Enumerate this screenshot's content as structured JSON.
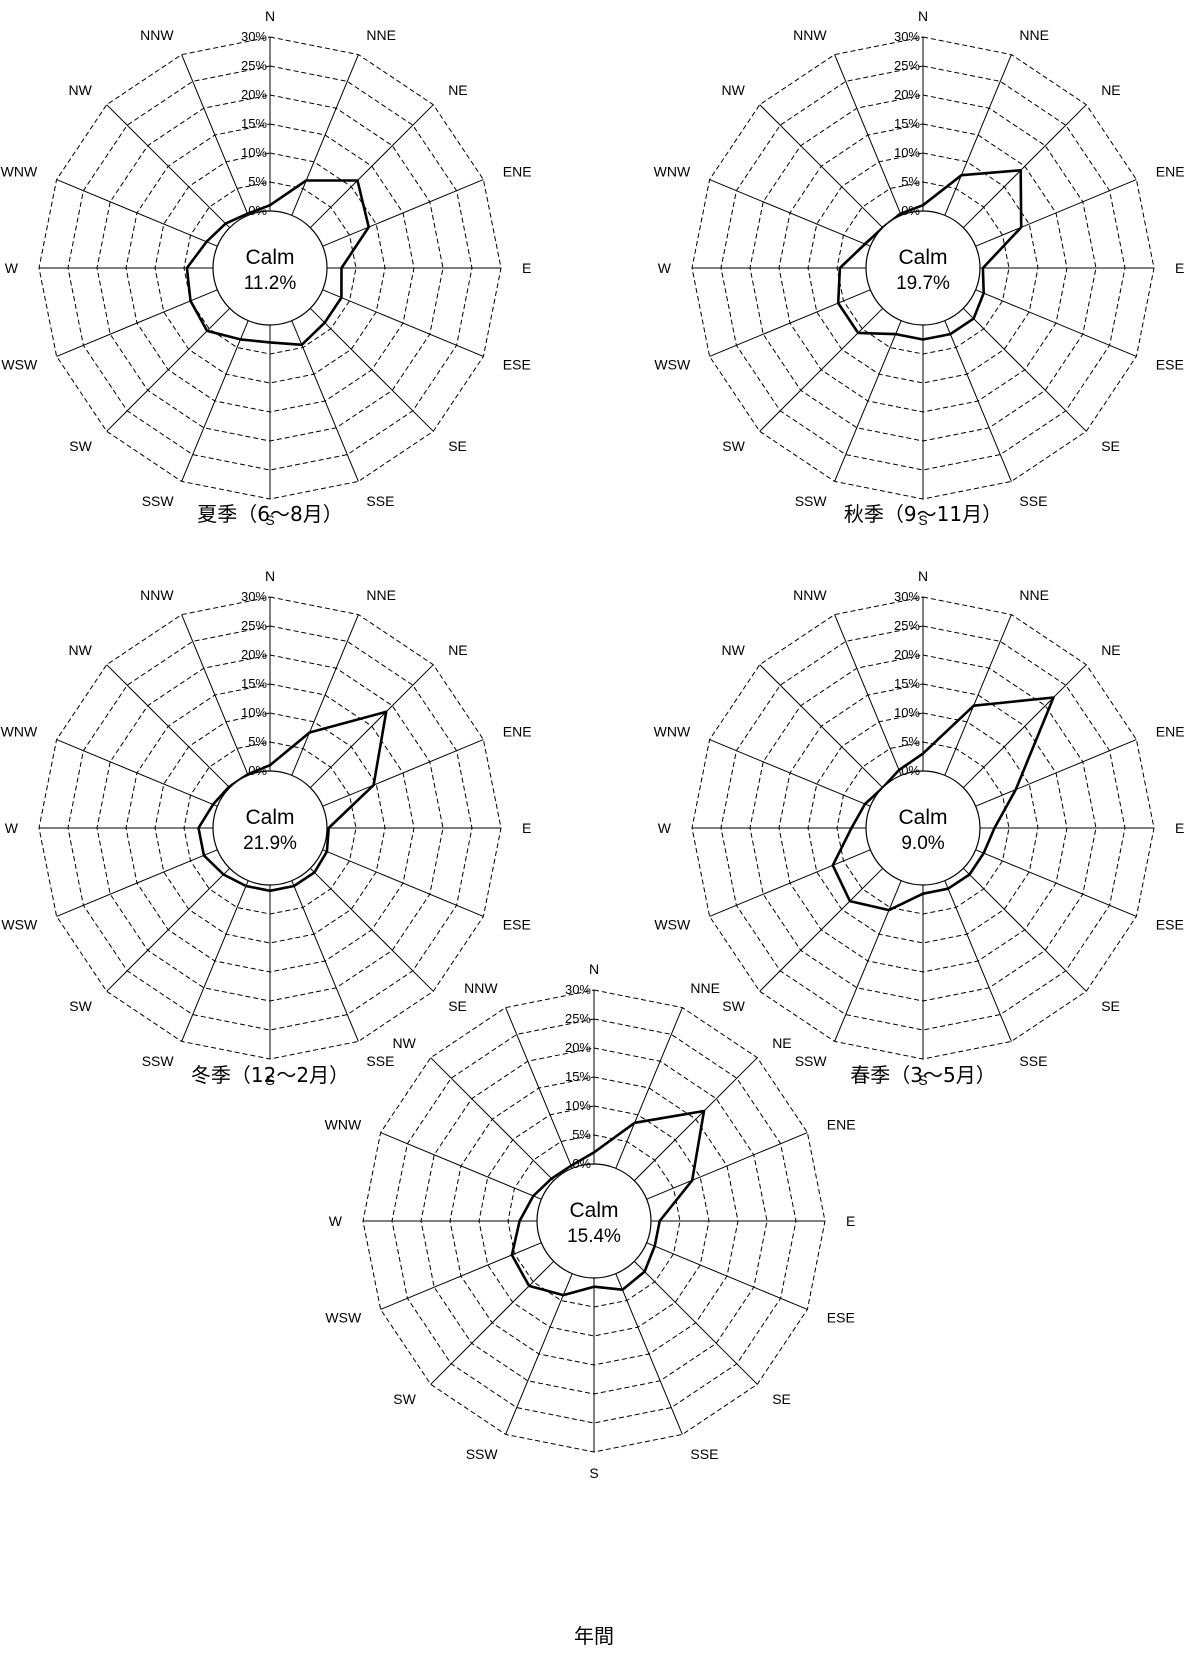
{
  "chart_data": [
    {
      "type": "radar",
      "caption": "夏季（6～8月）",
      "directions": [
        "N",
        "NNE",
        "NE",
        "ENE",
        "E",
        "ESE",
        "SE",
        "SSE",
        "S",
        "SSW",
        "SW",
        "WSW",
        "W",
        "WNW",
        "NW",
        "NNW"
      ],
      "rings": [
        "0%",
        "5%",
        "10%",
        "15%",
        "20%",
        "25%",
        "30%"
      ],
      "rmax": 30,
      "calm_label": "Calm",
      "calm_value": "11.2%",
      "values": [
        1.0,
        6.5,
        11.5,
        8.6,
        2.5,
        3.5,
        3.5,
        4.5,
        3.0,
        3.5,
        5.5,
        5.0,
        4.5,
        2.0,
        1.0,
        0.3
      ]
    },
    {
      "type": "radar",
      "caption": "秋季（9～11月）",
      "directions": [
        "N",
        "NNE",
        "NE",
        "ENE",
        "E",
        "ESE",
        "SE",
        "SSE",
        "S",
        "SSW",
        "SW",
        "WSW",
        "W",
        "WNW",
        "NW",
        "NNW"
      ],
      "rings": [
        "0%",
        "5%",
        "10%",
        "15%",
        "20%",
        "25%",
        "30%"
      ],
      "rmax": 30,
      "calm_label": "Calm",
      "calm_value": "19.7%",
      "values": [
        1.0,
        7.5,
        14.0,
        8.5,
        0.5,
        1.5,
        2.5,
        2.5,
        2.5,
        2.5,
        6.0,
        6.0,
        4.5,
        1.0,
        0.0,
        0.3
      ]
    },
    {
      "type": "radar",
      "caption": "冬季（12～2月）",
      "directions": [
        "N",
        "NNE",
        "NE",
        "ENE",
        "E",
        "ESE",
        "SE",
        "SSE",
        "S",
        "SSW",
        "SW",
        "WSW",
        "W",
        "WNW",
        "NW",
        "NNW"
      ],
      "rings": [
        "0%",
        "5%",
        "10%",
        "15%",
        "20%",
        "25%",
        "30%"
      ],
      "rmax": 30,
      "calm_label": "Calm",
      "calm_value": "21.9%",
      "values": [
        1.0,
        8.0,
        18.5,
        9.5,
        0.3,
        0.8,
        1.0,
        1.0,
        1.0,
        1.0,
        1.5,
        2.5,
        2.5,
        0.8,
        0.2,
        0.2
      ]
    },
    {
      "type": "radar",
      "caption": "春季（3～5月）",
      "directions": [
        "N",
        "NNE",
        "NE",
        "ENE",
        "E",
        "ESE",
        "SE",
        "SSE",
        "S",
        "SSW",
        "SW",
        "WSW",
        "W",
        "WNW",
        "NW",
        "NNW"
      ],
      "rings": [
        "0%",
        "5%",
        "10%",
        "15%",
        "20%",
        "25%",
        "30%"
      ],
      "rmax": 30,
      "calm_label": "Calm",
      "calm_value": "9.0%",
      "values": [
        3.0,
        13.0,
        22.0,
        7.5,
        2.5,
        1.5,
        1.5,
        1.5,
        1.5,
        5.5,
        8.0,
        7.0,
        2.5,
        1.0,
        0.0,
        1.0
      ]
    },
    {
      "type": "radar",
      "caption": "年間",
      "directions": [
        "N",
        "NNE",
        "NE",
        "ENE",
        "E",
        "ESE",
        "SE",
        "SSE",
        "S",
        "SSW",
        "SW",
        "WSW",
        "W",
        "WNW",
        "NW",
        "NNW"
      ],
      "rings": [
        "0%",
        "5%",
        "10%",
        "15%",
        "20%",
        "25%",
        "30%"
      ],
      "rmax": 30,
      "calm_label": "Calm",
      "calm_value": "15.4%",
      "values": [
        2.0,
        8.5,
        17.0,
        8.5,
        1.5,
        1.5,
        2.5,
        3.0,
        1.5,
        4.0,
        6.0,
        5.5,
        3.0,
        1.5,
        0.5,
        0.5
      ]
    }
  ]
}
